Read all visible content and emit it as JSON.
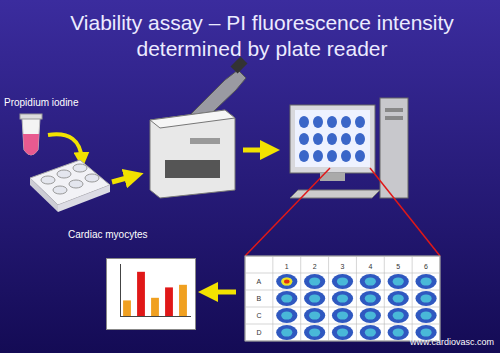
{
  "title": [
    "Viability assay – PI fluorescence intensity",
    "determined by plate reader"
  ],
  "labels": {
    "reagent": "Propidium iodine",
    "cells": "Cardiac myocytes"
  },
  "plate": {
    "rows": [
      "A",
      "B",
      "C",
      "D"
    ],
    "columns": [
      "1",
      "2",
      "3",
      "4",
      "5",
      "6"
    ]
  },
  "footer": "www.cardiovasc.com",
  "chart_data": {
    "type": "bar",
    "categories": [
      null,
      null,
      null,
      null,
      null
    ],
    "values": [
      0.3,
      0.85,
      0.35,
      0.55,
      0.6
    ],
    "colors": [
      "#f0a020",
      "#e01818",
      "#f0a020",
      "#e01818",
      "#f0a020"
    ],
    "ylim": [
      0,
      1
    ],
    "grid": false,
    "tick_labels": false
  }
}
